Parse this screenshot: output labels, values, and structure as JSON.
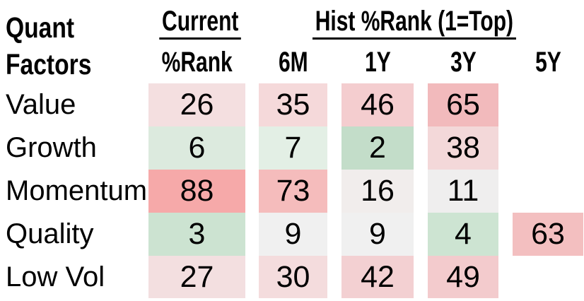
{
  "header": {
    "title_line1": "Quant",
    "title_line2": "Factors",
    "group_current": "Current",
    "group_hist": "Hist %Rank (1=Top)",
    "sub_headers": [
      "%Rank",
      "6M",
      "1Y",
      "3Y",
      "5Y"
    ]
  },
  "chart_data": {
    "type": "heatmap",
    "title": "Quant Factors",
    "row_header": "Quant Factors",
    "column_groups": [
      {
        "label": "Current",
        "columns": [
          "%Rank"
        ]
      },
      {
        "label": "Hist %Rank (1=Top)",
        "columns": [
          "6M",
          "1Y",
          "3Y",
          "5Y"
        ]
      }
    ],
    "columns": [
      "Current %Rank",
      "6M",
      "1Y",
      "3Y",
      "5Y"
    ],
    "value_semantics": "percentile rank, 1 = top",
    "value_range": [
      1,
      100
    ],
    "rows": [
      {
        "label": "Value",
        "values": [
          26,
          35,
          46,
          65,
          null
        ],
        "cell_colors": [
          "#f4dfe0",
          "#f5d9da",
          "#f4cdcf",
          "#f2babc",
          null
        ]
      },
      {
        "label": "Growth",
        "values": [
          6,
          7,
          2,
          38,
          null
        ],
        "cell_colors": [
          "#dceade",
          "#e3efe5",
          "#c3ddc9",
          "#f3d8d9",
          null
        ]
      },
      {
        "label": "Momentum",
        "values": [
          88,
          73,
          16,
          11,
          null
        ],
        "cell_colors": [
          "#f6a9a9",
          "#f5bcbc",
          "#f1edec",
          "#efeeee",
          null
        ]
      },
      {
        "label": "Quality",
        "values": [
          3,
          9,
          9,
          4,
          63
        ],
        "cell_colors": [
          "#cce3d1",
          "#f0f0f0",
          "#f0f0f0",
          "#cde4d2",
          "#f3bfc0"
        ]
      },
      {
        "label": "Low Vol",
        "values": [
          27,
          30,
          42,
          49,
          null
        ],
        "cell_colors": [
          "#f3dfe0",
          "#f4dcdd",
          "#f3d0d2",
          "#f3cbcd",
          null
        ]
      }
    ],
    "colors": {
      "scale_low_green": "#c3ddc9",
      "scale_mid_neutral": "#efefef",
      "scale_high_red": "#f6a9a9",
      "text": "#000000",
      "background": "#ffffff"
    },
    "grid": false,
    "legend_position": "none"
  }
}
